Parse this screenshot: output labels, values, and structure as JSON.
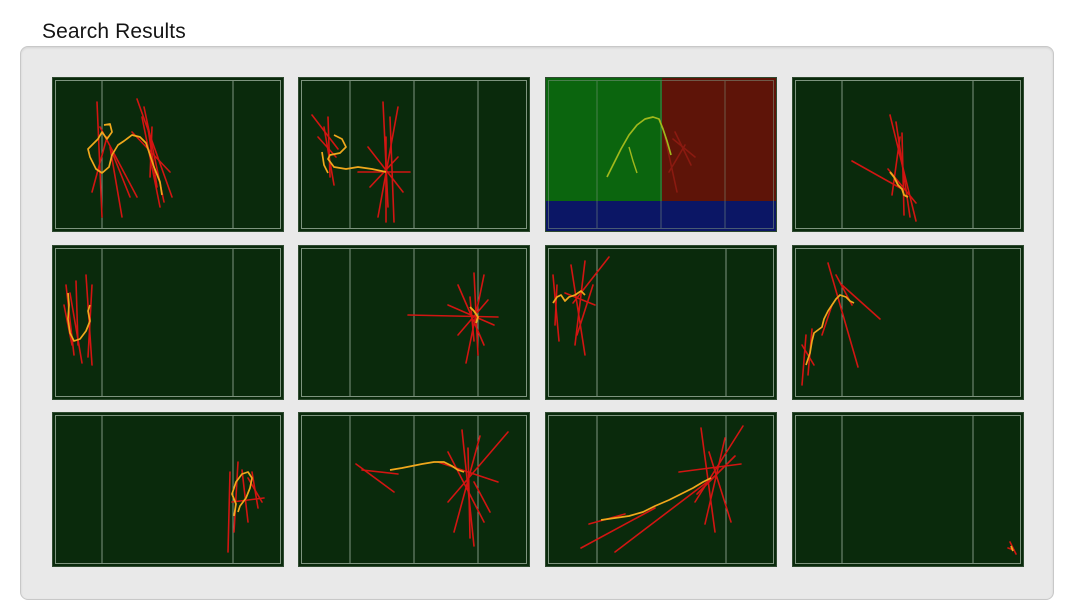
{
  "window": {
    "group_title": "Search Results"
  },
  "colors": {
    "pitch": "#0a2a0c",
    "pitch_border": "#2f4a30",
    "line": "#7e947f",
    "path_primary": "#f0a81c",
    "path_secondary": "#d21512",
    "zone_left": "#0b650e",
    "zone_right": "#5e1408",
    "zone_bottom": "#0b1665",
    "highlight_path": "#a0b81c"
  },
  "results": [
    {
      "id": 1,
      "selected": false
    },
    {
      "id": 2,
      "selected": false
    },
    {
      "id": 3,
      "selected": true
    },
    {
      "id": 4,
      "selected": false
    },
    {
      "id": 5,
      "selected": false
    },
    {
      "id": 6,
      "selected": false
    },
    {
      "id": 7,
      "selected": false
    },
    {
      "id": 8,
      "selected": false
    },
    {
      "id": 9,
      "selected": false
    },
    {
      "id": 10,
      "selected": false
    },
    {
      "id": 11,
      "selected": false
    },
    {
      "id": 12,
      "selected": false
    }
  ]
}
